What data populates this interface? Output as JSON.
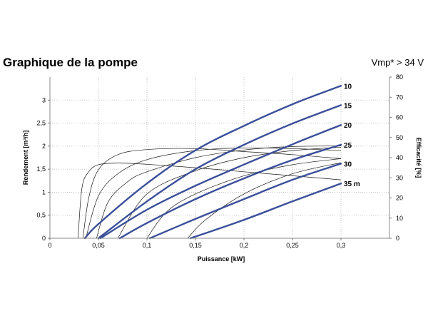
{
  "header": {
    "title": "Graphique de la pompe",
    "subtitle": "Vmp* > 34 V"
  },
  "chart_data": {
    "type": "line",
    "xlabel": "Puissance [kW]",
    "ylabel": "Rendement [m³/h]",
    "y2label": "Efficacité [%]",
    "xlim": [
      0,
      0.35
    ],
    "ylim": [
      0,
      3.5
    ],
    "y2lim": [
      0,
      80
    ],
    "x_ticks": [
      "0",
      "0,05",
      "0,1",
      "0,15",
      "0,2",
      "0,25",
      "0,3"
    ],
    "x_tick_values": [
      0,
      0.05,
      0.1,
      0.15,
      0.2,
      0.25,
      0.3
    ],
    "y_ticks": [
      "0",
      "0,5",
      "1",
      "1,5",
      "2",
      "2,5",
      "3"
    ],
    "y_tick_values": [
      0,
      0.5,
      1,
      1.5,
      2,
      2.5,
      3
    ],
    "y2_ticks": [
      "0",
      "10",
      "20",
      "30",
      "40",
      "50",
      "60",
      "70",
      "80"
    ],
    "y2_tick_values": [
      0,
      10,
      20,
      30,
      40,
      50,
      60,
      70,
      80
    ],
    "grid": true,
    "flow_series": [
      {
        "name": "10",
        "x": [
          0.036,
          0.05,
          0.1,
          0.15,
          0.2,
          0.25,
          0.3
        ],
        "y": [
          0,
          0.31,
          1.19,
          1.91,
          2.44,
          2.91,
          3.31
        ]
      },
      {
        "name": "15",
        "x": [
          0.05,
          0.1,
          0.15,
          0.2,
          0.25,
          0.3
        ],
        "y": [
          0,
          0.8,
          1.5,
          2.03,
          2.49,
          2.89
        ]
      },
      {
        "name": "20",
        "x": [
          0.052,
          0.1,
          0.15,
          0.2,
          0.25,
          0.3
        ],
        "y": [
          0,
          0.62,
          1.14,
          1.6,
          2.04,
          2.46
        ]
      },
      {
        "name": "25",
        "x": [
          0.072,
          0.1,
          0.15,
          0.2,
          0.25,
          0.3
        ],
        "y": [
          0,
          0.33,
          0.85,
          1.3,
          1.7,
          2.03
        ]
      },
      {
        "name": "30",
        "x": [
          0.103,
          0.15,
          0.2,
          0.25,
          0.3
        ],
        "y": [
          0,
          0.42,
          0.85,
          1.27,
          1.62
        ]
      },
      {
        "name": "35 m",
        "x": [
          0.145,
          0.2,
          0.25,
          0.3
        ],
        "y": [
          0,
          0.4,
          0.8,
          1.19
        ]
      }
    ],
    "efficiency_series": [
      {
        "x": [
          0.029,
          0.033,
          0.04,
          0.05,
          0.07,
          0.1,
          0.15,
          0.2,
          0.25,
          0.3
        ],
        "y": [
          0,
          25,
          33,
          36.5,
          37.3,
          36.7,
          35,
          33,
          31,
          29
        ]
      },
      {
        "x": [
          0.034,
          0.04,
          0.05,
          0.07,
          0.1,
          0.15,
          0.2,
          0.25,
          0.3
        ],
        "y": [
          0,
          20,
          34,
          41.5,
          44,
          44.5,
          43,
          41.5,
          39.5
        ]
      },
      {
        "x": [
          0.037,
          0.05,
          0.07,
          0.1,
          0.15,
          0.2,
          0.25,
          0.3
        ],
        "y": [
          0,
          21,
          32,
          39,
          43.5,
          44.8,
          44.5,
          43.5
        ]
      },
      {
        "x": [
          0.048,
          0.06,
          0.08,
          0.1,
          0.15,
          0.2,
          0.25,
          0.3
        ],
        "y": [
          0,
          18,
          28,
          33,
          40,
          43.8,
          45.5,
          45.8
        ]
      },
      {
        "x": [
          0.07,
          0.1,
          0.15,
          0.2,
          0.25,
          0.3
        ],
        "y": [
          0,
          22,
          33.5,
          40,
          43.5,
          45.2
        ]
      },
      {
        "x": [
          0.1,
          0.12,
          0.15,
          0.2,
          0.25,
          0.3
        ],
        "y": [
          0,
          13,
          22,
          31,
          36.5,
          39.5
        ]
      },
      {
        "x": [
          0.142,
          0.16,
          0.2,
          0.25,
          0.3
        ],
        "y": [
          0,
          9,
          22,
          32,
          37.5
        ]
      }
    ],
    "colors": {
      "flow": "#3a4f9a",
      "efficiency": "#1a1a1a",
      "grid": "#b8b8b8"
    }
  }
}
